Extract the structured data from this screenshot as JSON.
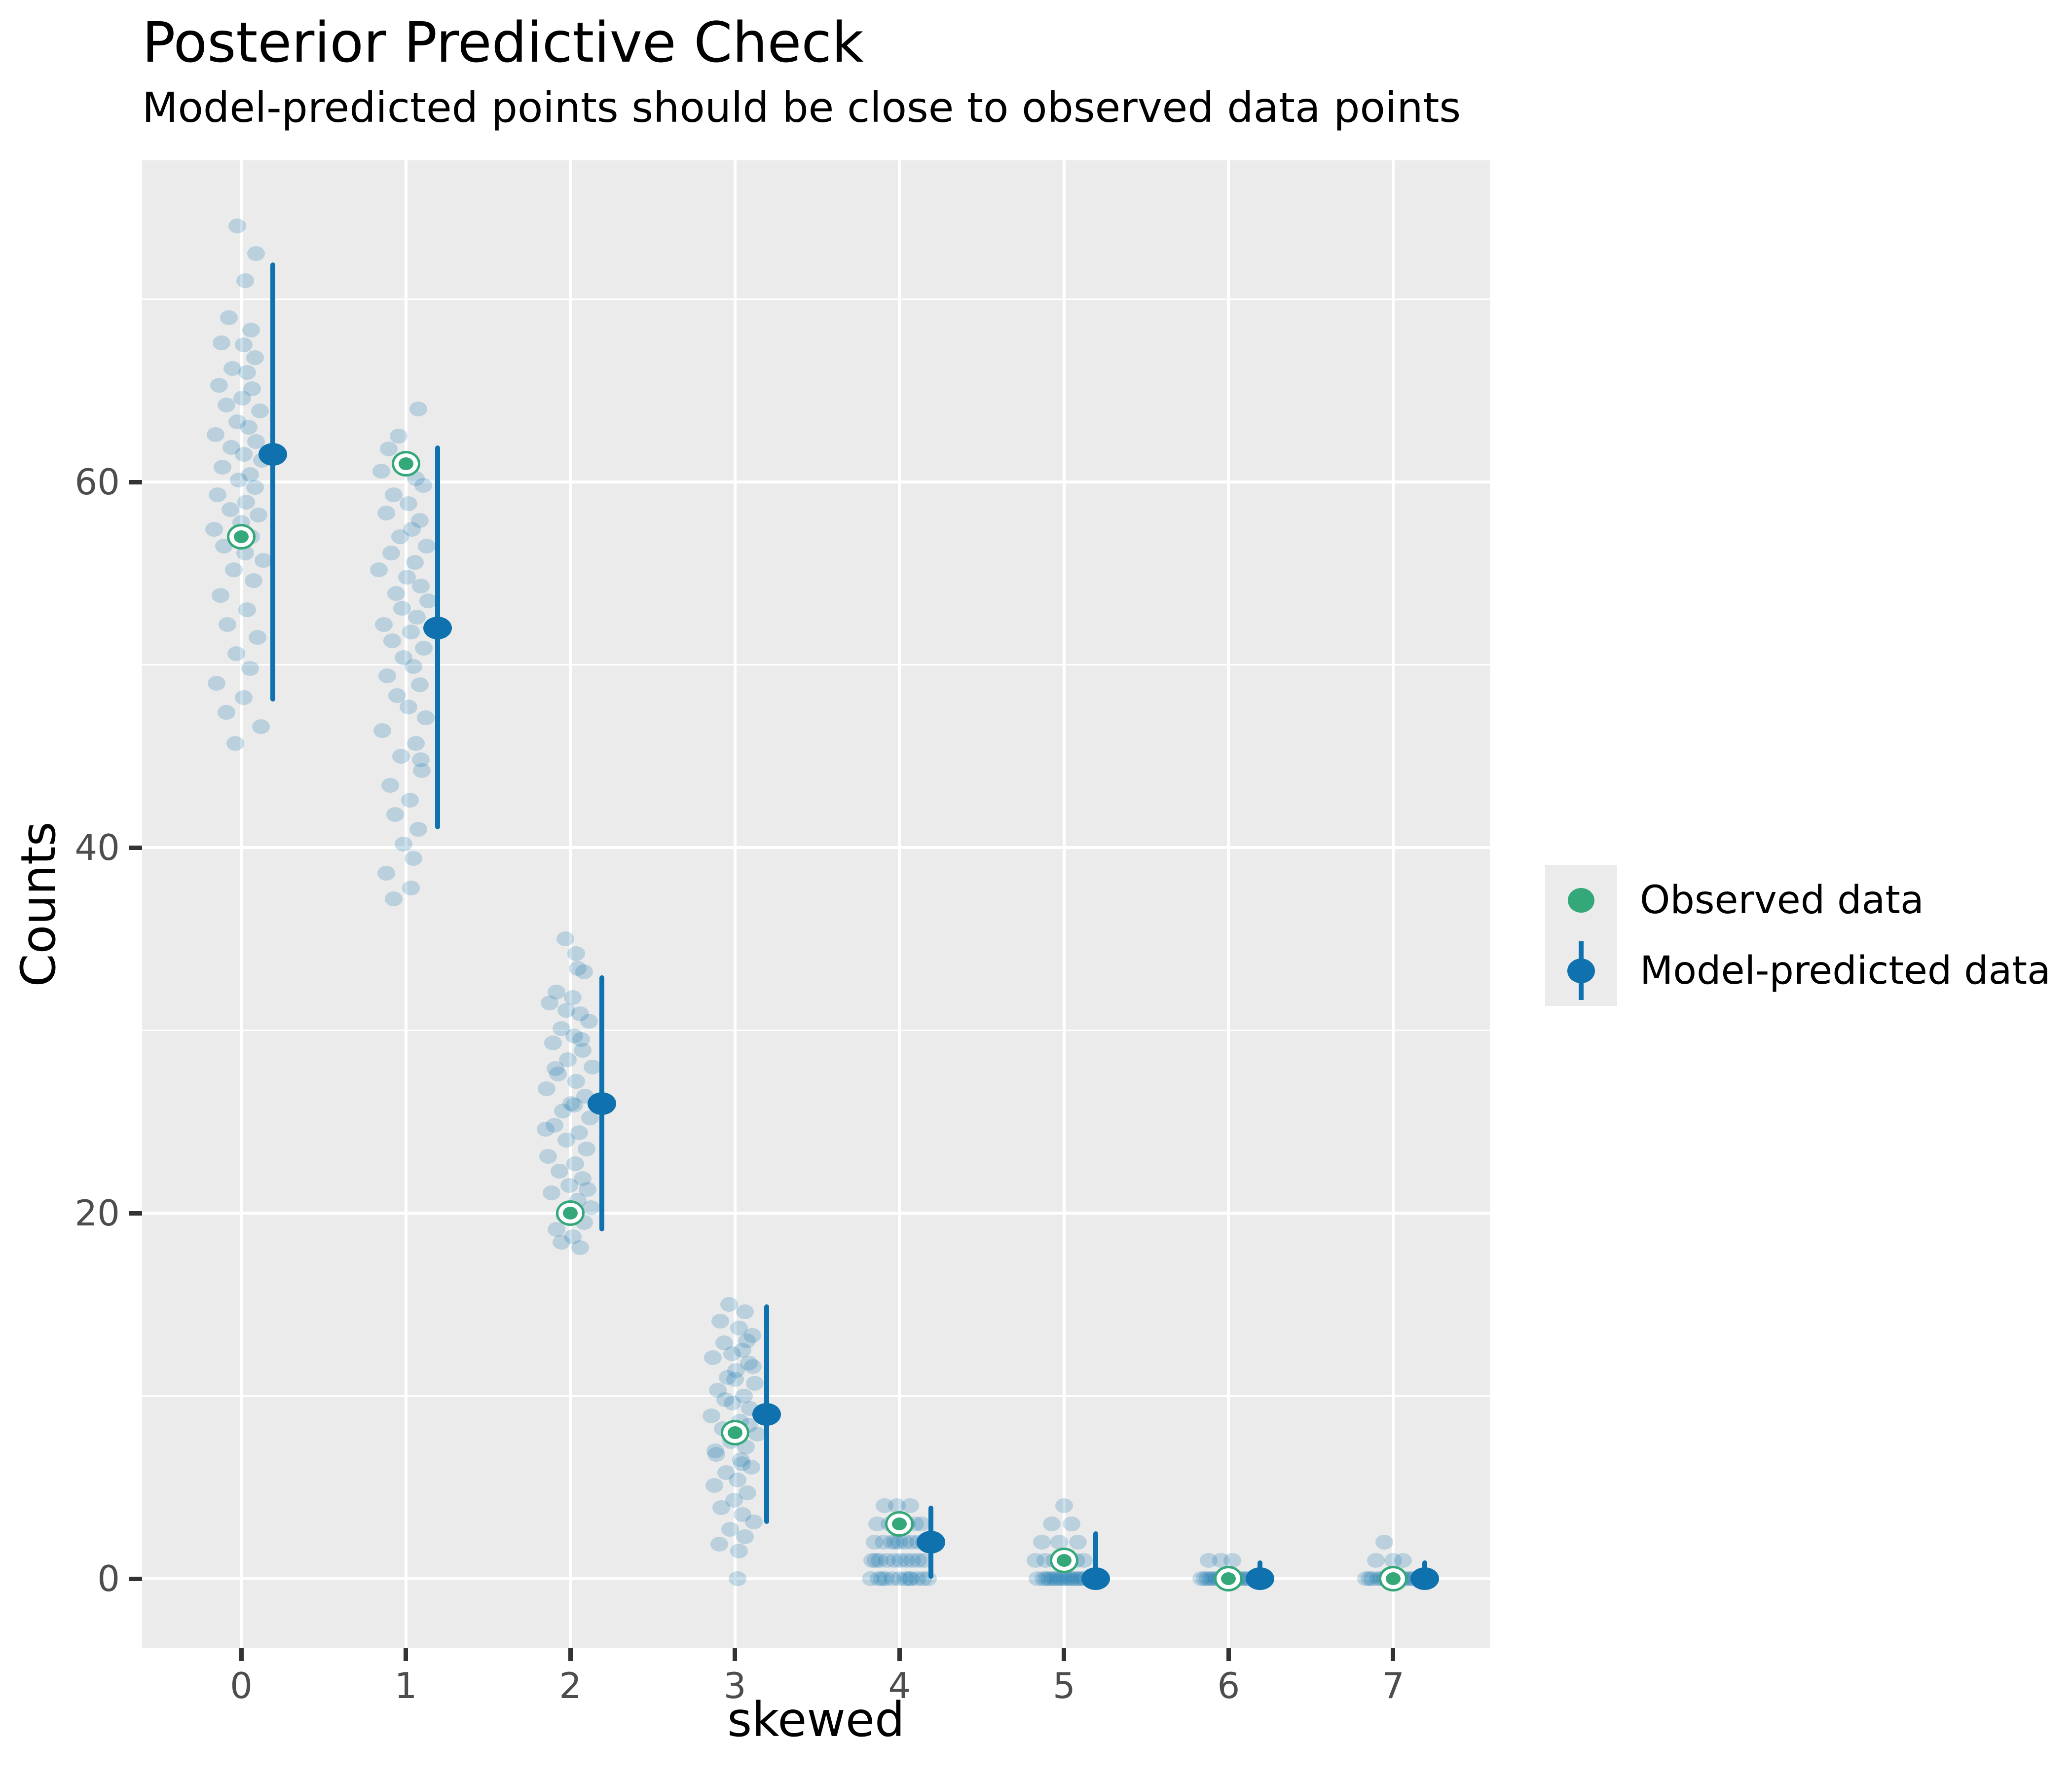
{
  "title": "Posterior Predictive Check",
  "subtitle": "Model-predicted points should be close to observed data points",
  "axes": {
    "x_label": "skewed",
    "y_label": "Counts",
    "x_tick_labels": [
      "0",
      "1",
      "2",
      "3",
      "4",
      "5",
      "6",
      "7"
    ],
    "y_tick_labels": [
      "0",
      "20",
      "40",
      "60"
    ]
  },
  "legend": {
    "items": [
      {
        "label": "Observed data",
        "marker": "green-point"
      },
      {
        "label": "Model-predicted data",
        "marker": "blue-pointrange"
      }
    ]
  },
  "colors": {
    "observed_green": "#35A87A",
    "predicted_blue": "#0F72AE",
    "jitter_blue": "rgba(15,114,174,0.22)",
    "panel_background": "#EBEBEB",
    "gridline": "#FFFFFF",
    "tick_text": "#4D4D4D",
    "tick_mark": "#333333",
    "text": "#000000"
  },
  "chart_data": {
    "type": "scatter",
    "subtype": "point-interval with jittered posterior draws",
    "title": "Posterior Predictive Check",
    "subtitle": "Model-predicted points should be close to observed data points",
    "xlabel": "skewed",
    "ylabel": "Counts",
    "categories": [
      0,
      1,
      2,
      3,
      4,
      5,
      6,
      7
    ],
    "x_major_gridlines": [
      0,
      1,
      2,
      3,
      4,
      5,
      6,
      7
    ],
    "y_major_gridlines": [
      0,
      20,
      40,
      60
    ],
    "y_minor_gridlines": [
      10,
      30,
      50,
      70
    ],
    "ylim": [
      -3.8,
      77.6
    ],
    "legend_position": "right",
    "grid": true,
    "series": [
      {
        "name": "Observed data",
        "values": [
          57,
          61,
          20,
          8,
          3,
          1,
          0,
          0
        ]
      },
      {
        "name": "Model-predicted mean",
        "values": [
          61.5,
          52,
          26,
          9,
          2,
          0,
          0,
          0
        ]
      },
      {
        "name": "Model-predicted interval low",
        "values": [
          48,
          41,
          19,
          3,
          0,
          0,
          0,
          0
        ]
      },
      {
        "name": "Model-predicted interval high",
        "values": [
          72,
          62,
          33,
          15,
          4,
          2.6,
          1,
          1
        ]
      }
    ],
    "posterior_draw_points": [
      [
        [
          -8,
          74
        ],
        [
          30,
          72.5
        ],
        [
          8,
          71
        ],
        [
          -25,
          69
        ],
        [
          20,
          68.3
        ],
        [
          -40,
          67.6
        ],
        [
          5,
          67.5
        ],
        [
          28,
          66.8
        ],
        [
          -18,
          66.2
        ],
        [
          12,
          66.0
        ],
        [
          -45,
          65.3
        ],
        [
          22,
          65.1
        ],
        [
          2,
          64.6
        ],
        [
          -30,
          64.2
        ],
        [
          38,
          63.9
        ],
        [
          -8,
          63.3
        ],
        [
          15,
          63.0
        ],
        [
          -52,
          62.6
        ],
        [
          30,
          62.2
        ],
        [
          -20,
          61.9
        ],
        [
          5,
          61.5
        ],
        [
          42,
          61.2
        ],
        [
          -38,
          60.8
        ],
        [
          18,
          60.4
        ],
        [
          -5,
          60.1
        ],
        [
          28,
          59.7
        ],
        [
          -48,
          59.3
        ],
        [
          10,
          58.9
        ],
        [
          -22,
          58.5
        ],
        [
          35,
          58.2
        ],
        [
          0,
          57.8
        ],
        [
          -55,
          57.4
        ],
        [
          20,
          57.0
        ],
        [
          -35,
          56.5
        ],
        [
          8,
          56.1
        ],
        [
          45,
          55.7
        ],
        [
          -15,
          55.2
        ],
        [
          25,
          54.6
        ],
        [
          -42,
          53.8
        ],
        [
          12,
          53.0
        ],
        [
          -28,
          52.2
        ],
        [
          33,
          51.5
        ],
        [
          -10,
          50.6
        ],
        [
          18,
          49.8
        ],
        [
          -50,
          49.0
        ],
        [
          5,
          48.2
        ],
        [
          -30,
          47.4
        ],
        [
          40,
          46.6
        ],
        [
          -12,
          45.7
        ]
      ],
      [
        [
          25,
          64
        ],
        [
          -15,
          62.5
        ],
        [
          -35,
          61.8
        ],
        [
          8,
          61.2
        ],
        [
          -50,
          60.6
        ],
        [
          20,
          60.2
        ],
        [
          35,
          59.8
        ],
        [
          -25,
          59.3
        ],
        [
          5,
          58.8
        ],
        [
          -40,
          58.3
        ],
        [
          28,
          57.9
        ],
        [
          12,
          57.4
        ],
        [
          -12,
          57.0
        ],
        [
          42,
          56.5
        ],
        [
          -30,
          56.1
        ],
        [
          18,
          55.6
        ],
        [
          -55,
          55.2
        ],
        [
          2,
          54.8
        ],
        [
          30,
          54.3
        ],
        [
          -20,
          53.9
        ],
        [
          45,
          53.5
        ],
        [
          -8,
          53.1
        ],
        [
          22,
          52.6
        ],
        [
          -45,
          52.2
        ],
        [
          10,
          51.8
        ],
        [
          -28,
          51.3
        ],
        [
          36,
          50.9
        ],
        [
          -5,
          50.4
        ],
        [
          15,
          49.9
        ],
        [
          -38,
          49.4
        ],
        [
          28,
          48.9
        ],
        [
          -18,
          48.3
        ],
        [
          5,
          47.7
        ],
        [
          40,
          47.1
        ],
        [
          -48,
          46.4
        ],
        [
          20,
          45.7
        ],
        [
          -10,
          45.0
        ],
        [
          30,
          44.8
        ],
        [
          32,
          44.2
        ],
        [
          -32,
          43.4
        ],
        [
          8,
          42.6
        ],
        [
          -22,
          41.8
        ],
        [
          25,
          41.0
        ],
        [
          -5,
          40.2
        ],
        [
          15,
          39.4
        ],
        [
          -40,
          38.6
        ],
        [
          10,
          37.8
        ],
        [
          -25,
          37.2
        ]
      ],
      [
        [
          -10,
          35
        ],
        [
          15,
          33.4
        ],
        [
          28,
          33.2
        ],
        [
          -28,
          32.1
        ],
        [
          5,
          31.8
        ],
        [
          -8,
          31.1
        ],
        [
          -42,
          31.5
        ],
        [
          20,
          30.9
        ],
        [
          38,
          30.5
        ],
        [
          -18,
          30.1
        ],
        [
          8,
          29.7
        ],
        [
          22,
          29.5
        ],
        [
          -35,
          29.3
        ],
        [
          25,
          28.9
        ],
        [
          -5,
          28.4
        ],
        [
          45,
          28.0
        ],
        [
          -30,
          27.9
        ],
        [
          -25,
          27.6
        ],
        [
          12,
          27.2
        ],
        [
          -48,
          26.8
        ],
        [
          30,
          26.4
        ],
        [
          2,
          26.0
        ],
        [
          8,
          25.9
        ],
        [
          -15,
          25.6
        ],
        [
          40,
          25.2
        ],
        [
          -32,
          24.8
        ],
        [
          -50,
          24.6
        ],
        [
          18,
          24.4
        ],
        [
          -8,
          24.0
        ],
        [
          33,
          23.5
        ],
        [
          -45,
          23.1
        ],
        [
          10,
          22.7
        ],
        [
          -22,
          22.3
        ],
        [
          25,
          21.9
        ],
        [
          -2,
          21.5
        ],
        [
          35,
          21.3
        ],
        [
          -38,
          21.1
        ],
        [
          15,
          20.7
        ],
        [
          42,
          20.3
        ],
        [
          -12,
          19.9
        ],
        [
          28,
          19.5
        ],
        [
          -28,
          19.1
        ],
        [
          5,
          18.7
        ],
        [
          -18,
          18.4
        ],
        [
          20,
          18.1
        ],
        [
          12,
          34.2
        ]
      ],
      [
        [
          -12,
          15
        ],
        [
          20,
          14.6
        ],
        [
          -30,
          14.1
        ],
        [
          8,
          13.7
        ],
        [
          35,
          13.3
        ],
        [
          24,
          13.0
        ],
        [
          -22,
          12.9
        ],
        [
          15,
          12.5
        ],
        [
          -6,
          12.3
        ],
        [
          -45,
          12.1
        ],
        [
          28,
          11.8
        ],
        [
          36,
          11.6
        ],
        [
          2,
          11.4
        ],
        [
          -15,
          11.0
        ],
        [
          0,
          10.9
        ],
        [
          40,
          10.7
        ],
        [
          -35,
          10.3
        ],
        [
          18,
          10.0
        ],
        [
          -20,
          9.8
        ],
        [
          -5,
          9.6
        ],
        [
          30,
          9.3
        ],
        [
          -48,
          8.9
        ],
        [
          10,
          8.6
        ],
        [
          28,
          8.4
        ],
        [
          -25,
          8.2
        ],
        [
          45,
          7.9
        ],
        [
          -8,
          7.5
        ],
        [
          22,
          7.2
        ],
        [
          -40,
          7.0
        ],
        [
          -38,
          6.8
        ],
        [
          12,
          6.5
        ],
        [
          14,
          6.3
        ],
        [
          33,
          6.1
        ],
        [
          -18,
          5.8
        ],
        [
          5,
          5.4
        ],
        [
          -42,
          5.1
        ],
        [
          25,
          4.7
        ],
        [
          -2,
          4.3
        ],
        [
          -28,
          3.9
        ],
        [
          15,
          3.5
        ],
        [
          38,
          3.1
        ],
        [
          -10,
          2.7
        ],
        [
          20,
          2.3
        ],
        [
          -32,
          1.9
        ],
        [
          8,
          1.5
        ],
        [
          5,
          0
        ]
      ],
      [
        [
          -30,
          4
        ],
        [
          -5,
          4
        ],
        [
          22,
          4
        ],
        [
          -45,
          3
        ],
        [
          -20,
          3
        ],
        [
          0,
          3
        ],
        [
          15,
          3
        ],
        [
          32,
          3
        ],
        [
          45,
          3
        ],
        [
          -50,
          2
        ],
        [
          -32,
          2
        ],
        [
          -15,
          2
        ],
        [
          0,
          2
        ],
        [
          12,
          2
        ],
        [
          25,
          2
        ],
        [
          38,
          2
        ],
        [
          50,
          2
        ],
        [
          -8,
          2
        ],
        [
          -55,
          1
        ],
        [
          -40,
          1
        ],
        [
          -25,
          1
        ],
        [
          -10,
          1
        ],
        [
          2,
          1
        ],
        [
          14,
          1
        ],
        [
          26,
          1
        ],
        [
          38,
          1
        ],
        [
          50,
          1
        ],
        [
          -48,
          1
        ],
        [
          -58,
          0
        ],
        [
          -42,
          0
        ],
        [
          -28,
          0
        ],
        [
          -14,
          0
        ],
        [
          0,
          0
        ],
        [
          12,
          0
        ],
        [
          24,
          0
        ],
        [
          36,
          0
        ],
        [
          48,
          0
        ],
        [
          58,
          0
        ],
        [
          -35,
          0
        ],
        [
          20,
          0
        ]
      ],
      [
        [
          0,
          4
        ],
        [
          -25,
          3
        ],
        [
          15,
          3
        ],
        [
          -45,
          2
        ],
        [
          -10,
          2
        ],
        [
          28,
          2
        ],
        [
          -58,
          1
        ],
        [
          -38,
          1
        ],
        [
          -20,
          1
        ],
        [
          -5,
          1
        ],
        [
          10,
          1
        ],
        [
          25,
          1
        ],
        [
          40,
          1
        ],
        [
          -30,
          0
        ],
        [
          -18,
          0
        ],
        [
          -6,
          0
        ],
        [
          6,
          0
        ],
        [
          18,
          0
        ],
        [
          30,
          0
        ],
        [
          42,
          0
        ],
        [
          -42,
          0
        ],
        [
          -54,
          0
        ],
        [
          52,
          0
        ],
        [
          -12,
          0
        ],
        [
          0,
          0
        ],
        [
          12,
          0
        ],
        [
          24,
          0
        ],
        [
          36,
          0
        ],
        [
          -24,
          0
        ],
        [
          -36,
          0
        ]
      ],
      [
        [
          -40,
          1
        ],
        [
          -15,
          1
        ],
        [
          8,
          1
        ],
        [
          -55,
          0
        ],
        [
          -42,
          0
        ],
        [
          -30,
          0
        ],
        [
          -18,
          0
        ],
        [
          -6,
          0
        ],
        [
          6,
          0
        ],
        [
          18,
          0
        ],
        [
          30,
          0
        ],
        [
          -24,
          0
        ],
        [
          -12,
          0
        ],
        [
          0,
          0
        ],
        [
          12,
          0
        ],
        [
          24,
          0
        ],
        [
          36,
          0
        ],
        [
          -36,
          0
        ],
        [
          -48,
          0
        ],
        [
          42,
          0
        ]
      ],
      [
        [
          -18,
          2
        ],
        [
          -35,
          1
        ],
        [
          0,
          1
        ],
        [
          20,
          1
        ],
        [
          -55,
          0
        ],
        [
          -42,
          0
        ],
        [
          -30,
          0
        ],
        [
          -18,
          0
        ],
        [
          -6,
          0
        ],
        [
          6,
          0
        ],
        [
          18,
          0
        ],
        [
          30,
          0
        ],
        [
          42,
          0
        ],
        [
          -24,
          0
        ],
        [
          -12,
          0
        ],
        [
          0,
          0
        ],
        [
          12,
          0
        ],
        [
          24,
          0
        ],
        [
          36,
          0
        ],
        [
          -48,
          0
        ]
      ]
    ]
  }
}
